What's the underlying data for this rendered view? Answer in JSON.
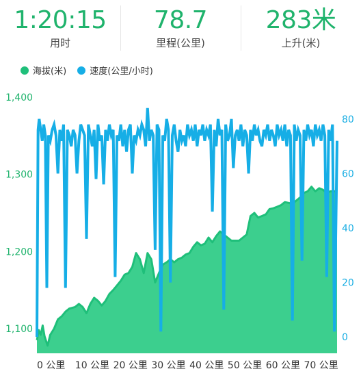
{
  "stats": [
    {
      "value": "1:20:15",
      "label": "用时"
    },
    {
      "value": "78.7",
      "label": "里程(公里)"
    },
    {
      "value": "283米",
      "label": "上升(米)"
    }
  ],
  "legend": [
    {
      "label": "海拔(米)",
      "color": "#1fbf7a"
    },
    {
      "label": "速度(公里/小时)",
      "color": "#16aee6"
    }
  ],
  "chart_data": {
    "type": "area",
    "x_ticks": [
      "0 公里",
      "10 公里",
      "20 公里",
      "30 公里",
      "40 公里",
      "50 公里",
      "60 公里",
      "70 公里"
    ],
    "x_tick_values": [
      0,
      10,
      20,
      30,
      40,
      50,
      60,
      70
    ],
    "xlim": [
      0,
      78.7
    ],
    "y_left_ticks": [
      "1,100",
      "1,200",
      "1,300",
      "1,400"
    ],
    "y_left_values": [
      1100,
      1200,
      1300,
      1400
    ],
    "y_left_lim": [
      1068,
      1400
    ],
    "y_right_ticks": [
      "0",
      "20",
      "40",
      "60",
      "80"
    ],
    "y_right_values": [
      0,
      20,
      40,
      60,
      80
    ],
    "y_right_lim": [
      -6,
      88
    ],
    "series": [
      {
        "name": "海拔(米)",
        "axis": "left",
        "color": "#1fbf7a",
        "fill": "#3ccf8e",
        "x": [
          0,
          0.5,
          1,
          1.5,
          2,
          2.8,
          3.5,
          4.5,
          5.5,
          6.5,
          7.5,
          8.5,
          10,
          11,
          12,
          13,
          14,
          15,
          16,
          17,
          18,
          19,
          20,
          21,
          22,
          23,
          24,
          25,
          26,
          27,
          28,
          29,
          30,
          31,
          32,
          33,
          34,
          35,
          36,
          37,
          38,
          39,
          40,
          41,
          42,
          43,
          44,
          45,
          46,
          47,
          48,
          49,
          50,
          51,
          52,
          53,
          54,
          55,
          56,
          57,
          58,
          59,
          60,
          61,
          62,
          63,
          64,
          65,
          66,
          67,
          68,
          69,
          70,
          71,
          72,
          73,
          74,
          75,
          76,
          77,
          78,
          78.7
        ],
        "values": [
          1085,
          1098,
          1092,
          1104,
          1090,
          1078,
          1092,
          1100,
          1112,
          1116,
          1122,
          1126,
          1128,
          1132,
          1128,
          1120,
          1132,
          1140,
          1136,
          1130,
          1136,
          1145,
          1150,
          1156,
          1162,
          1170,
          1172,
          1180,
          1198,
          1190,
          1172,
          1198,
          1190,
          1160,
          1172,
          1183,
          1186,
          1190,
          1186,
          1190,
          1192,
          1196,
          1198,
          1206,
          1212,
          1208,
          1210,
          1218,
          1212,
          1220,
          1226,
          1222,
          1218,
          1214,
          1214,
          1214,
          1218,
          1222,
          1246,
          1250,
          1244,
          1246,
          1248,
          1255,
          1256,
          1258,
          1260,
          1264,
          1263,
          1262,
          1266,
          1270,
          1276,
          1278,
          1284,
          1278,
          1282,
          1280,
          1276,
          1278,
          1278,
          1278
        ]
      },
      {
        "name": "速度(公里/小时)",
        "axis": "right",
        "color": "#16aee6",
        "x": [
          0,
          0.3,
          0.6,
          1.0,
          1.4,
          1.8,
          2.2,
          2.6,
          3.0,
          3.5,
          4.0,
          4.5,
          5.0,
          5.5,
          6.0,
          6.5,
          7.0,
          7.5,
          8.0,
          8.5,
          9.0,
          9.5,
          10.0,
          10.5,
          11.0,
          11.5,
          12.0,
          12.5,
          13.0,
          13.5,
          14.0,
          14.5,
          15.0,
          15.5,
          16.0,
          16.5,
          17.0,
          17.5,
          18.0,
          18.5,
          19.0,
          19.5,
          20.0,
          20.5,
          21.0,
          21.5,
          22.0,
          22.5,
          23.0,
          23.5,
          24.0,
          24.5,
          25.0,
          25.5,
          26.0,
          26.5,
          27.0,
          27.5,
          28.0,
          28.5,
          29.0,
          29.5,
          30.0,
          30.5,
          31.0,
          31.5,
          32.0,
          32.5,
          33.0,
          33.5,
          34.0,
          34.5,
          35.0,
          35.5,
          36.0,
          36.5,
          37.0,
          37.5,
          38.0,
          38.5,
          39.0,
          39.5,
          40.0,
          40.5,
          41.0,
          41.5,
          42.0,
          42.5,
          43.0,
          43.5,
          44.0,
          44.5,
          45.0,
          45.5,
          46.0,
          46.5,
          47.0,
          47.5,
          48.0,
          48.5,
          49.0,
          49.5,
          50.0,
          50.5,
          51.0,
          51.5,
          52.0,
          52.5,
          53.0,
          53.5,
          54.0,
          54.5,
          55.0,
          55.5,
          56.0,
          56.5,
          57.0,
          57.5,
          58.0,
          58.5,
          59.0,
          59.5,
          60.0,
          60.5,
          61.0,
          61.5,
          62.0,
          62.5,
          63.0,
          63.5,
          64.0,
          64.5,
          65.0,
          65.5,
          66.0,
          66.5,
          67.0,
          67.5,
          68.0,
          68.5,
          69.0,
          69.5,
          70.0,
          70.5,
          71.0,
          71.5,
          72.0,
          72.5,
          73.0,
          73.5,
          74.0,
          74.5,
          75.0,
          75.5,
          76.0,
          76.5,
          77.0,
          77.5,
          78.0,
          78.7
        ],
        "values": [
          0,
          76,
          80,
          76,
          72,
          78,
          74,
          18,
          74,
          72,
          76,
          78,
          74,
          60,
          76,
          72,
          78,
          18,
          76,
          74,
          70,
          76,
          74,
          60,
          72,
          78,
          76,
          74,
          36,
          78,
          74,
          70,
          76,
          58,
          78,
          72,
          74,
          56,
          76,
          72,
          78,
          74,
          76,
          22,
          74,
          72,
          78,
          70,
          76,
          68,
          76,
          78,
          60,
          74,
          72,
          76,
          74,
          78,
          76,
          70,
          84,
          72,
          76,
          74,
          32,
          78,
          76,
          2,
          74,
          72,
          80,
          76,
          20,
          74,
          78,
          72,
          68,
          76,
          72,
          74,
          70,
          78,
          74,
          76,
          72,
          78,
          70,
          76,
          74,
          78,
          72,
          76,
          74,
          78,
          46,
          76,
          70,
          80,
          74,
          76,
          10,
          78,
          72,
          74,
          80,
          62,
          74,
          76,
          72,
          78,
          70,
          76,
          74,
          60,
          76,
          72,
          78,
          74,
          76,
          72,
          70,
          76,
          74,
          78,
          72,
          76,
          74,
          70,
          78,
          74,
          76,
          72,
          78,
          70,
          76,
          74,
          6,
          78,
          72,
          76,
          74,
          28,
          76,
          72,
          78,
          74,
          76,
          70,
          78,
          74,
          76,
          72,
          78,
          74,
          22,
          76,
          72,
          78,
          2,
          72
        ]
      }
    ]
  }
}
